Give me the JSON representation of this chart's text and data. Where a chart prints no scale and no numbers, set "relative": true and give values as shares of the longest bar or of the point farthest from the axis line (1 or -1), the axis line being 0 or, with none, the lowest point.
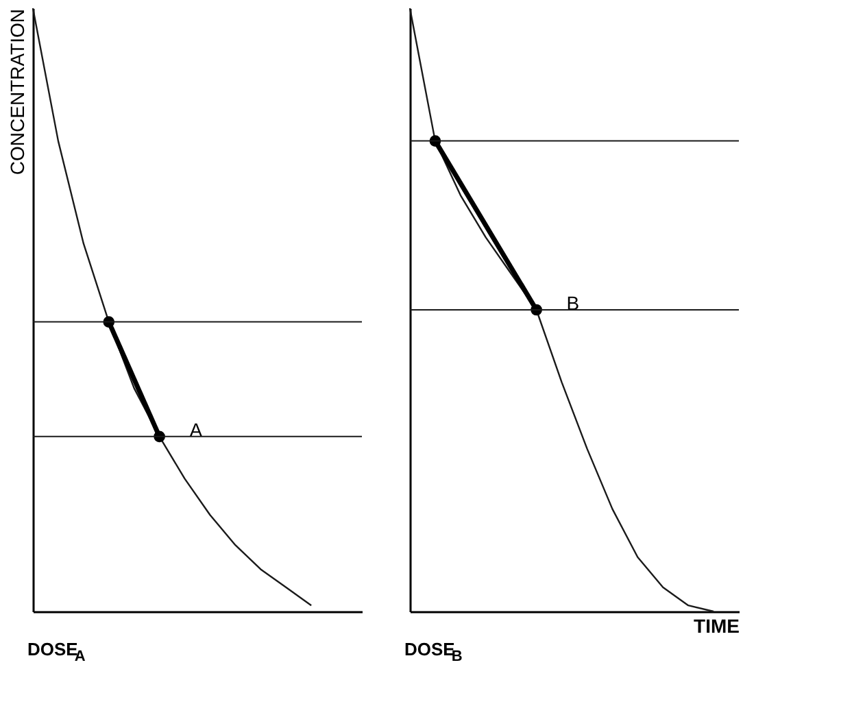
{
  "chart_data": [
    {
      "type": "line",
      "relative": true,
      "ylabel": "CONCENTRATION",
      "categories": [
        null,
        null,
        null,
        null,
        null,
        null,
        null,
        null,
        null,
        null,
        null,
        null,
        null
      ],
      "tick_labels": false,
      "grid": false,
      "series": [
        {
          "color": "#1a1a1a",
          "values": [
            1,
            0.78,
            0.61,
            0.48,
            0.37,
            0.29,
            0.22,
            0.16,
            0.11,
            0.07,
            0.04,
            0.01,
            null
          ]
        },
        {
          "name": "A",
          "color": "#000000",
          "marker": "circle",
          "values": [
            null,
            null,
            null,
            0.48,
            null,
            0.29,
            null,
            null,
            null,
            null,
            null,
            null,
            null
          ]
        }
      ],
      "ref_lines": [
        {
          "axis": "y",
          "value": 0.48,
          "color": "#1a1a1a"
        },
        {
          "axis": "y",
          "value": 0.29,
          "color": "#1a1a1a"
        }
      ],
      "annotations": [
        "DOSE$_{A}$"
      ]
    },
    {
      "type": "line",
      "relative": true,
      "xlabel": "TIME",
      "categories": [
        null,
        null,
        null,
        null,
        null,
        null,
        null,
        null,
        null,
        null,
        null,
        null,
        null
      ],
      "tick_labels": false,
      "grid": false,
      "series": [
        {
          "color": "#1a1a1a",
          "values": [
            1,
            0.78,
            0.69,
            0.62,
            0.56,
            0.5,
            0.38,
            0.27,
            0.17,
            0.09,
            0.04,
            0.01,
            0
          ]
        },
        {
          "name": "B",
          "color": "#000000",
          "marker": "circle",
          "values": [
            null,
            0.78,
            null,
            null,
            null,
            0.5,
            null,
            null,
            null,
            null,
            null,
            null,
            null
          ]
        }
      ],
      "ref_lines": [
        {
          "axis": "y",
          "value": 0.78,
          "color": "#1a1a1a"
        },
        {
          "axis": "y",
          "value": 0.5,
          "color": "#1a1a1a"
        }
      ],
      "annotations": [
        "DOSE$_{B}$"
      ]
    }
  ]
}
